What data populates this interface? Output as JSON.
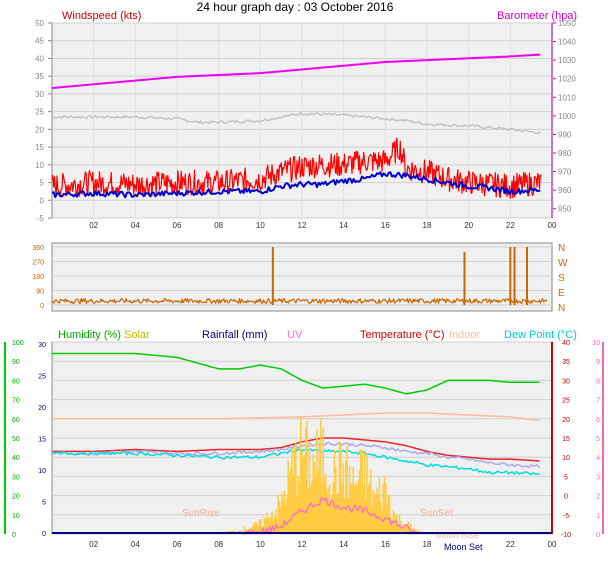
{
  "title": "24 hour graph day : 03 October 2016",
  "colors": {
    "wind": "#ff0000",
    "gust": "#ff0000",
    "avgwind": "#0000cc",
    "baro": "#ee00ee",
    "winddir": "#cc6600",
    "humidity": "#00cc00",
    "solar": "#cccc00",
    "rain": "#000080",
    "uv": "#ff66ff",
    "temp": "#cc0000",
    "indoor": "#ffbb99",
    "dew": "#00dddd"
  },
  "chart_data": [
    {
      "type": "line",
      "x_ticks": [
        "02",
        "04",
        "06",
        "08",
        "10",
        "12",
        "14",
        "16",
        "18",
        "20",
        "22",
        "00"
      ],
      "left_label": "Windspeed (kts)",
      "right_label": "Barometer (hpa)",
      "left_ticks": [
        "50",
        "45",
        "40",
        "35",
        "30",
        "25",
        "20",
        "15",
        "10",
        "5",
        "0",
        "-5"
      ],
      "right_ticks": [
        "1050",
        "1040",
        "1030",
        "1020",
        "1010",
        "1000",
        "990",
        "980",
        "970",
        "960",
        "950"
      ],
      "ylim_left": [
        -5,
        50
      ],
      "ylim_right": [
        945,
        1050
      ],
      "series": [
        {
          "key": "baro",
          "x": [
            0,
            2,
            4,
            6,
            8,
            10,
            12,
            14,
            16,
            18,
            20,
            22,
            23.5
          ],
          "y": [
            1015,
            1017,
            1019,
            1021,
            1022,
            1023,
            1025,
            1027,
            1029,
            1030,
            1031,
            1032,
            1033
          ]
        },
        {
          "key": "grey",
          "x": [
            0,
            2,
            4,
            6,
            7,
            8,
            10,
            11,
            12,
            14,
            15,
            16,
            17,
            18,
            20,
            22,
            23.5
          ],
          "y": [
            23.5,
            23.5,
            23.5,
            23,
            22,
            22,
            22.5,
            23.5,
            24.5,
            24,
            23.5,
            23,
            22.5,
            21.5,
            21,
            20,
            19
          ]
        },
        {
          "key": "gust",
          "x": [
            0,
            2,
            4,
            6,
            8,
            10,
            11,
            12,
            13,
            14,
            15,
            16,
            16.7,
            17,
            18,
            19,
            20,
            22,
            23.5
          ],
          "y": [
            4,
            5,
            4.5,
            5,
            5,
            6,
            8,
            9.5,
            10,
            10,
            11,
            11,
            15,
            9,
            8,
            6,
            5,
            4,
            5
          ]
        },
        {
          "key": "avgwind",
          "x": [
            0,
            2,
            4,
            6,
            8,
            10,
            11,
            12,
            13,
            14,
            15,
            16,
            17,
            18,
            19,
            20,
            21,
            22,
            23.5
          ],
          "y": [
            1.5,
            2,
            1.5,
            2,
            2.5,
            2.5,
            4,
            4.5,
            4.5,
            5.5,
            6,
            7.5,
            7,
            6,
            5,
            4,
            3.5,
            2.5,
            3
          ]
        }
      ]
    },
    {
      "type": "scatter",
      "left_ticks": [
        "360",
        "270",
        "180",
        "90",
        "0"
      ],
      "right_labels": [
        "N",
        "W",
        "S",
        "E",
        "N"
      ],
      "ylim": [
        0,
        360
      ],
      "baseline_deg": 25,
      "spikes": [
        {
          "x": 10.6,
          "deg": 360
        },
        {
          "x": 19.8,
          "deg": 330
        },
        {
          "x": 22.0,
          "deg": 360
        },
        {
          "x": 22.2,
          "deg": 360
        },
        {
          "x": 22.8,
          "deg": 360
        }
      ]
    },
    {
      "type": "line",
      "legend": [
        "Humidity (%)",
        "Solar",
        "Rainfall (mm)",
        "UV",
        "Temperature (°C)",
        "Indoor",
        "Dew Point (°C)"
      ],
      "left_ticks": [
        "100",
        "90",
        "80",
        "70",
        "60",
        "50",
        "40",
        "30",
        "20",
        "10",
        "0"
      ],
      "axis2_ticks": [
        "30",
        "25",
        "20",
        "15",
        "10",
        "5",
        "0"
      ],
      "right_ticks": [
        "40",
        "35",
        "30",
        "25",
        "20",
        "15",
        "10",
        "5",
        "0",
        "-5",
        "-10"
      ],
      "far_right_ticks": [
        "10",
        "9",
        "8",
        "7",
        "6",
        "5",
        "4",
        "3",
        "2",
        "1",
        "0"
      ],
      "ylim_humidity": [
        0,
        100
      ],
      "ylim_temp": [
        -10,
        40
      ],
      "annotations": [
        "SunRise",
        "SunSet",
        "Moon Set",
        "Moon Rise"
      ],
      "series": [
        {
          "key": "humidity",
          "x": [
            0,
            2,
            4,
            6,
            7,
            8,
            9,
            10,
            11,
            12,
            13,
            14,
            15,
            16,
            17,
            18,
            19,
            20,
            21,
            22,
            23,
            23.5
          ],
          "y": [
            94,
            94,
            94,
            92,
            89,
            86,
            86,
            88,
            86,
            80,
            76,
            77,
            78,
            76,
            73,
            75,
            80,
            80,
            80,
            79,
            79,
            79
          ]
        },
        {
          "key": "indoor",
          "x": [
            0,
            4,
            8,
            12,
            16,
            18,
            20,
            22,
            23.5
          ],
          "y": [
            20,
            20,
            20,
            20.5,
            21.5,
            21.5,
            21,
            20.5,
            19.5
          ]
        },
        {
          "key": "temp",
          "x": [
            0,
            2,
            4,
            6,
            8,
            10,
            11,
            12,
            13,
            14,
            15,
            16,
            17,
            18,
            19,
            20,
            21,
            22,
            23.5
          ],
          "y": [
            11.5,
            11.5,
            12,
            11.5,
            12,
            12,
            12.5,
            14,
            15,
            15,
            14.5,
            14,
            13,
            11.5,
            10.5,
            10,
            9.5,
            9.5,
            9
          ]
        },
        {
          "key": "uv_line",
          "x": [
            0,
            2,
            4,
            6,
            8,
            10,
            11,
            12,
            13,
            14,
            15,
            16,
            17,
            18,
            19,
            20,
            21,
            22,
            23.5
          ],
          "y": [
            11,
            11,
            11.5,
            11,
            11,
            11.5,
            12,
            13,
            13.5,
            13.5,
            13,
            12.5,
            11.5,
            11,
            10,
            9.5,
            8.5,
            8,
            7.5
          ]
        },
        {
          "key": "dew",
          "x": [
            0,
            2,
            4,
            6,
            8,
            10,
            11,
            12,
            13,
            14,
            15,
            16,
            17,
            18,
            19,
            20,
            21,
            22,
            23.5
          ],
          "y": [
            11,
            11,
            11,
            10.5,
            10,
            10,
            11,
            12,
            11.5,
            11.5,
            11,
            10,
            9,
            8,
            7.5,
            7,
            6,
            6,
            5.5
          ]
        },
        {
          "key": "solar",
          "x": [
            7.5,
            9,
            10,
            11,
            11.5,
            12,
            12.5,
            13,
            13.5,
            14,
            14.5,
            15,
            15.5,
            16,
            16.5,
            17,
            17.5,
            18
          ],
          "y": [
            0,
            2,
            6,
            18,
            38,
            50,
            42,
            48,
            36,
            40,
            30,
            38,
            22,
            28,
            10,
            6,
            2,
            0
          ]
        },
        {
          "key": "uv_bars",
          "x": [
            9,
            10,
            11,
            12,
            13,
            14,
            15,
            16,
            17,
            17.5
          ],
          "y": [
            0,
            1,
            4,
            12,
            18,
            14,
            12,
            8,
            3,
            0
          ]
        }
      ]
    }
  ]
}
